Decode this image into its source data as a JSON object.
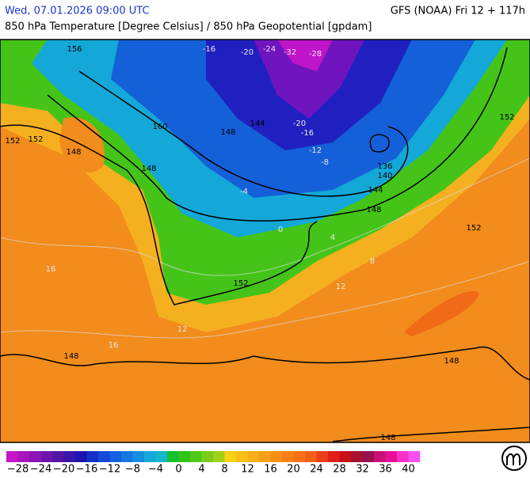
{
  "header": {
    "datetime": "Wed, 07.01.2026 09:00 UTC",
    "model": "GFS (NOAA) Fri 12 + 117h",
    "subtitle": "850 hPa Temperature [Degree Celsius] / 850 hPa Geopotential [gpdam]"
  },
  "map": {
    "contour_labels": [
      "156",
      "152",
      "152",
      "160",
      "148",
      "148",
      "148",
      "144",
      "140",
      "136",
      "144",
      "148",
      "152",
      "152",
      "152",
      "148",
      "148",
      "148"
    ],
    "temperature_labels": [
      "-16",
      "-20",
      "-24",
      "-32",
      "-28",
      "-20",
      "-16",
      "-12",
      "-8",
      "-4",
      "0",
      "4",
      "8",
      "12",
      "16",
      "16",
      "12"
    ]
  },
  "legend": {
    "labels": [
      "−28",
      "−24",
      "−20",
      "−16",
      "−12",
      "−8",
      "−4",
      "0",
      "4",
      "8",
      "12",
      "16",
      "20",
      "24",
      "28",
      "32",
      "36",
      "40"
    ]
  }
}
